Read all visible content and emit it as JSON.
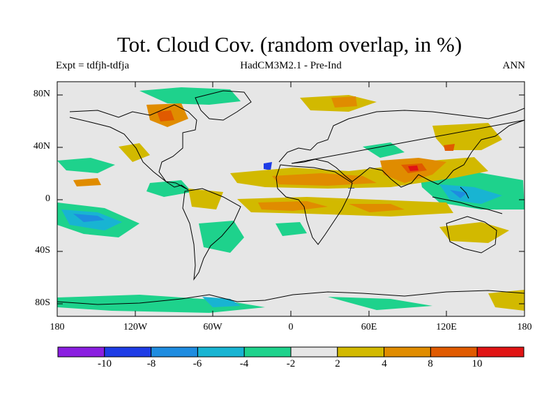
{
  "title": "Tot. Cloud Cov. (random overlap, in %)",
  "experiment": "Expt = tdfjh-tdfja",
  "model": "HadCM3M2.1 - Pre-Ind",
  "season": "ANN",
  "axes": {
    "y_ticks": [
      "80N",
      "40N",
      "0",
      "40S",
      "80S"
    ],
    "x_ticks": [
      "180",
      "120W",
      "60W",
      "0",
      "60E",
      "120E",
      "180"
    ]
  },
  "colorbar": {
    "labels": [
      "-10",
      "-8",
      "-6",
      "-4",
      "-2",
      "2",
      "4",
      "8",
      "10"
    ],
    "colors": [
      "#8a1ee0",
      "#1e3ce6",
      "#1e8ce0",
      "#18b4d2",
      "#1ed28c",
      "#e6e6e6",
      "#d2b900",
      "#e08c00",
      "#e05a00",
      "#e01414"
    ]
  },
  "colors": {
    "ocean_background": "#e6e6e6",
    "coast": "#000000"
  }
}
